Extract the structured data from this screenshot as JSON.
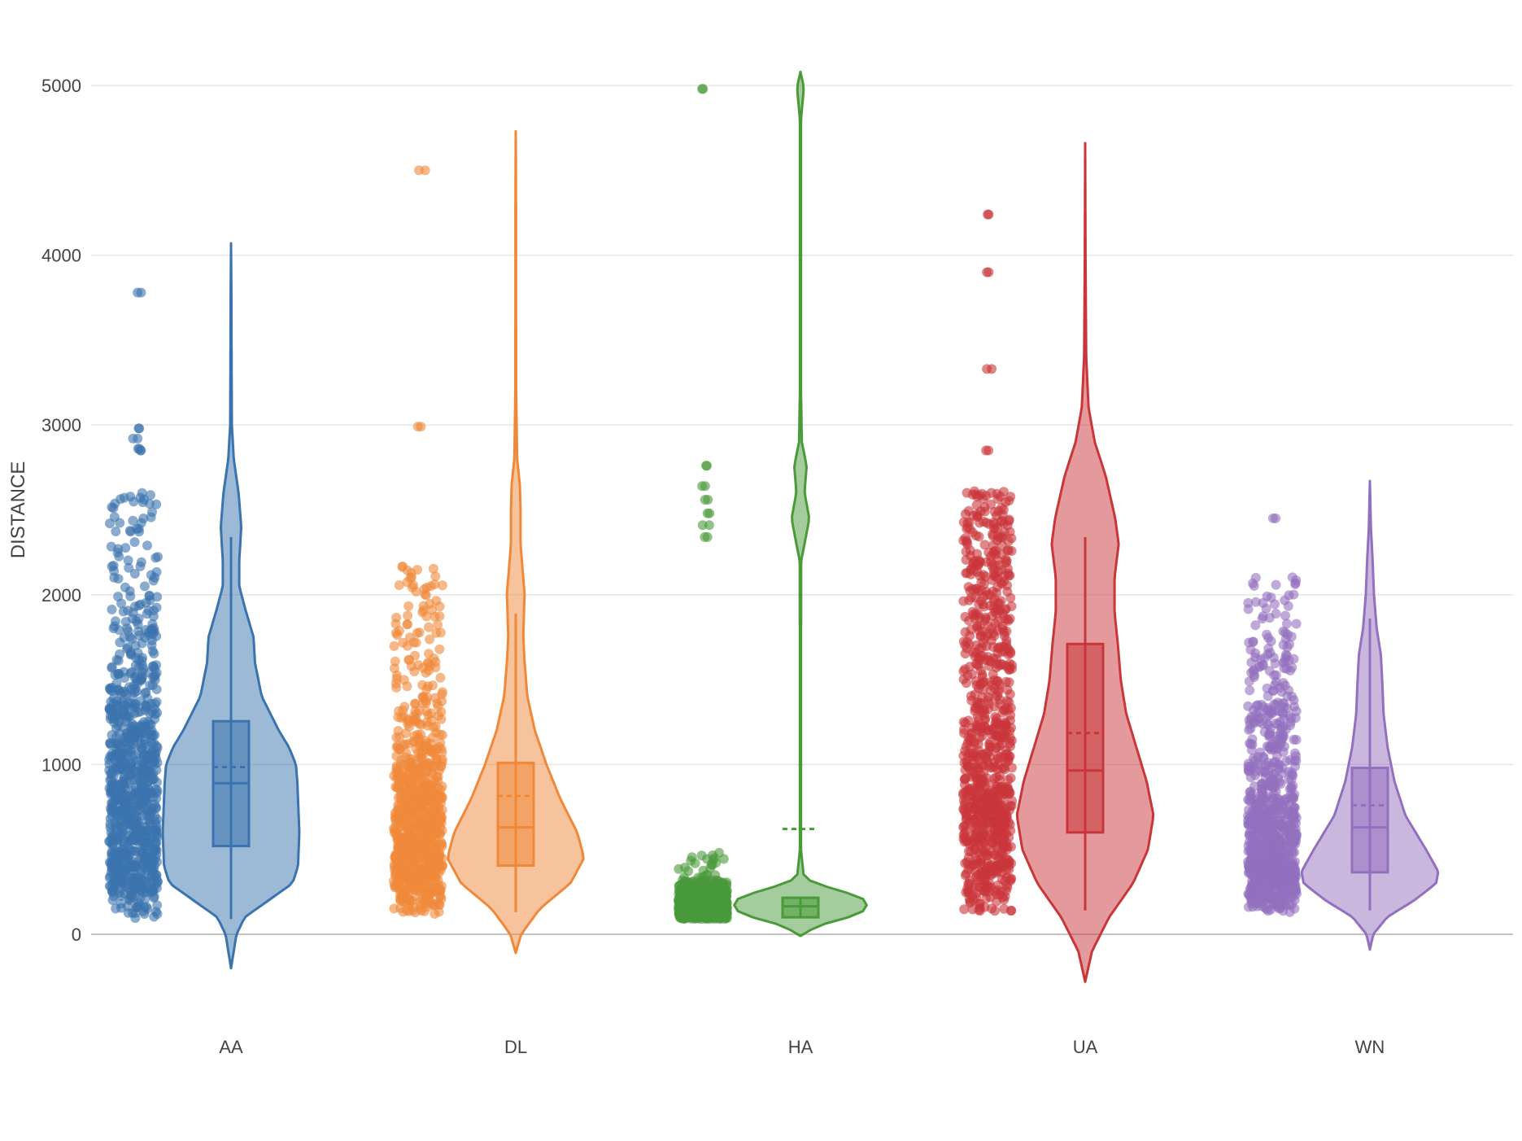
{
  "chart_data": {
    "type": "violin",
    "ylabel": "DISTANCE",
    "ylim": [
      -300,
      5100
    ],
    "yticks": [
      0,
      1000,
      2000,
      3000,
      4000,
      5000
    ],
    "grid": true,
    "legend": "none",
    "categories": [
      "AA",
      "DL",
      "HA",
      "UA",
      "WN"
    ],
    "series": [
      {
        "category": "AA",
        "color": "#3a73ae",
        "violin_range": [
          -200,
          4070
        ],
        "box": {
          "min": 90,
          "q1": 520,
          "median": 890,
          "mean": 985,
          "q3": 1255,
          "max": 2340
        },
        "density": [
          [
            -200,
            0
          ],
          [
            0,
            0.08
          ],
          [
            100,
            0.2
          ],
          [
            200,
            0.55
          ],
          [
            300,
            0.9
          ],
          [
            400,
            0.98
          ],
          [
            600,
            1.0
          ],
          [
            800,
            0.98
          ],
          [
            900,
            0.97
          ],
          [
            1000,
            0.95
          ],
          [
            1100,
            0.85
          ],
          [
            1200,
            0.7
          ],
          [
            1400,
            0.45
          ],
          [
            1600,
            0.35
          ],
          [
            1750,
            0.33
          ],
          [
            1900,
            0.22
          ],
          [
            2050,
            0.12
          ],
          [
            2200,
            0.12
          ],
          [
            2400,
            0.15
          ],
          [
            2600,
            0.11
          ],
          [
            2800,
            0.04
          ],
          [
            3000,
            0.012
          ],
          [
            3400,
            0.008
          ],
          [
            3800,
            0.005
          ],
          [
            4070,
            0
          ]
        ],
        "outliers": [
          3780,
          2980,
          2920,
          2860,
          2850
        ]
      },
      {
        "category": "DL",
        "color": "#f0883a",
        "violin_range": [
          -110,
          4730
        ],
        "box": {
          "min": 130,
          "q1": 405,
          "median": 630,
          "mean": 815,
          "q3": 1010,
          "max": 1890
        },
        "density": [
          [
            -110,
            0
          ],
          [
            0,
            0.08
          ],
          [
            150,
            0.35
          ],
          [
            300,
            0.8
          ],
          [
            450,
            1.0
          ],
          [
            600,
            0.9
          ],
          [
            800,
            0.65
          ],
          [
            1000,
            0.45
          ],
          [
            1200,
            0.28
          ],
          [
            1400,
            0.17
          ],
          [
            1600,
            0.13
          ],
          [
            1750,
            0.11
          ],
          [
            1900,
            0.12
          ],
          [
            2000,
            0.13
          ],
          [
            2150,
            0.1
          ],
          [
            2300,
            0.07
          ],
          [
            2500,
            0.07
          ],
          [
            2650,
            0.06
          ],
          [
            2800,
            0.02
          ],
          [
            3200,
            0.006
          ],
          [
            3800,
            0.005
          ],
          [
            4400,
            0.004
          ],
          [
            4730,
            0
          ]
        ],
        "outliers": [
          4500,
          2990
        ]
      },
      {
        "category": "HA",
        "color": "#4a9a3a",
        "violin_range": [
          -10,
          5080
        ],
        "box": {
          "min": 95,
          "q1": 100,
          "median": 165,
          "mean": 620,
          "q3": 215,
          "max": 220
        },
        "density": [
          [
            -10,
            0
          ],
          [
            50,
            0.25
          ],
          [
            100,
            0.7
          ],
          [
            150,
            1.0
          ],
          [
            220,
            0.9
          ],
          [
            270,
            0.45
          ],
          [
            330,
            0.05
          ],
          [
            500,
            0.008
          ],
          [
            1500,
            0.008
          ],
          [
            2200,
            0.01
          ],
          [
            2300,
            0.06
          ],
          [
            2450,
            0.13
          ],
          [
            2600,
            0.06
          ],
          [
            2760,
            0.09
          ],
          [
            2900,
            0.02
          ],
          [
            3200,
            0.008
          ],
          [
            4800,
            0.008
          ],
          [
            4990,
            0.05
          ],
          [
            5080,
            0
          ]
        ],
        "outliers": [
          4980,
          2760,
          2640,
          2560,
          2480,
          2410,
          2340
        ]
      },
      {
        "category": "UA",
        "color": "#c9363a",
        "violin_range": [
          -280,
          4660
        ],
        "box": {
          "min": 140,
          "q1": 600,
          "median": 965,
          "mean": 1185,
          "q3": 1710,
          "max": 2340
        },
        "density": [
          [
            -280,
            0
          ],
          [
            -100,
            0.1
          ],
          [
            100,
            0.35
          ],
          [
            300,
            0.7
          ],
          [
            500,
            0.92
          ],
          [
            700,
            1.0
          ],
          [
            900,
            0.9
          ],
          [
            1100,
            0.75
          ],
          [
            1300,
            0.6
          ],
          [
            1500,
            0.52
          ],
          [
            1700,
            0.48
          ],
          [
            1900,
            0.43
          ],
          [
            2100,
            0.43
          ],
          [
            2300,
            0.49
          ],
          [
            2450,
            0.44
          ],
          [
            2700,
            0.3
          ],
          [
            2900,
            0.14
          ],
          [
            3100,
            0.05
          ],
          [
            3400,
            0.015
          ],
          [
            4000,
            0.005
          ],
          [
            4660,
            0
          ]
        ],
        "outliers": [
          4240,
          3900,
          3330,
          2850
        ]
      },
      {
        "category": "WN",
        "color": "#9370be",
        "violin_range": [
          -90,
          2670
        ],
        "box": {
          "min": 140,
          "q1": 365,
          "median": 630,
          "mean": 760,
          "q3": 980,
          "max": 1860
        },
        "density": [
          [
            -90,
            0
          ],
          [
            0,
            0.05
          ],
          [
            100,
            0.25
          ],
          [
            200,
            0.65
          ],
          [
            300,
            0.97
          ],
          [
            370,
            1.0
          ],
          [
            500,
            0.82
          ],
          [
            700,
            0.52
          ],
          [
            900,
            0.36
          ],
          [
            1100,
            0.26
          ],
          [
            1300,
            0.2
          ],
          [
            1500,
            0.18
          ],
          [
            1650,
            0.16
          ],
          [
            1800,
            0.1
          ],
          [
            2000,
            0.06
          ],
          [
            2200,
            0.04
          ],
          [
            2400,
            0.015
          ],
          [
            2670,
            0
          ]
        ],
        "outliers": [
          2450
        ]
      }
    ]
  }
}
